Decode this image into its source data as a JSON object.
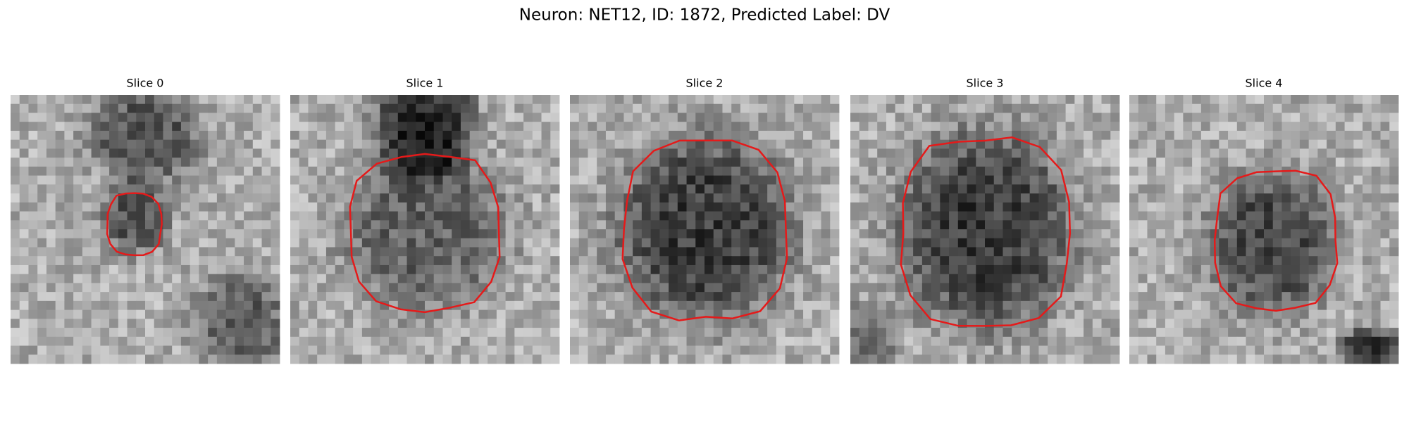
{
  "figure": {
    "title": "Neuron: NET12, ID: 1872, Predicted Label: DV",
    "panels": [
      {
        "title": "Slice 0"
      },
      {
        "title": "Slice 1"
      },
      {
        "title": "Slice 2"
      },
      {
        "title": "Slice 3"
      },
      {
        "title": "Slice 4"
      }
    ]
  }
}
